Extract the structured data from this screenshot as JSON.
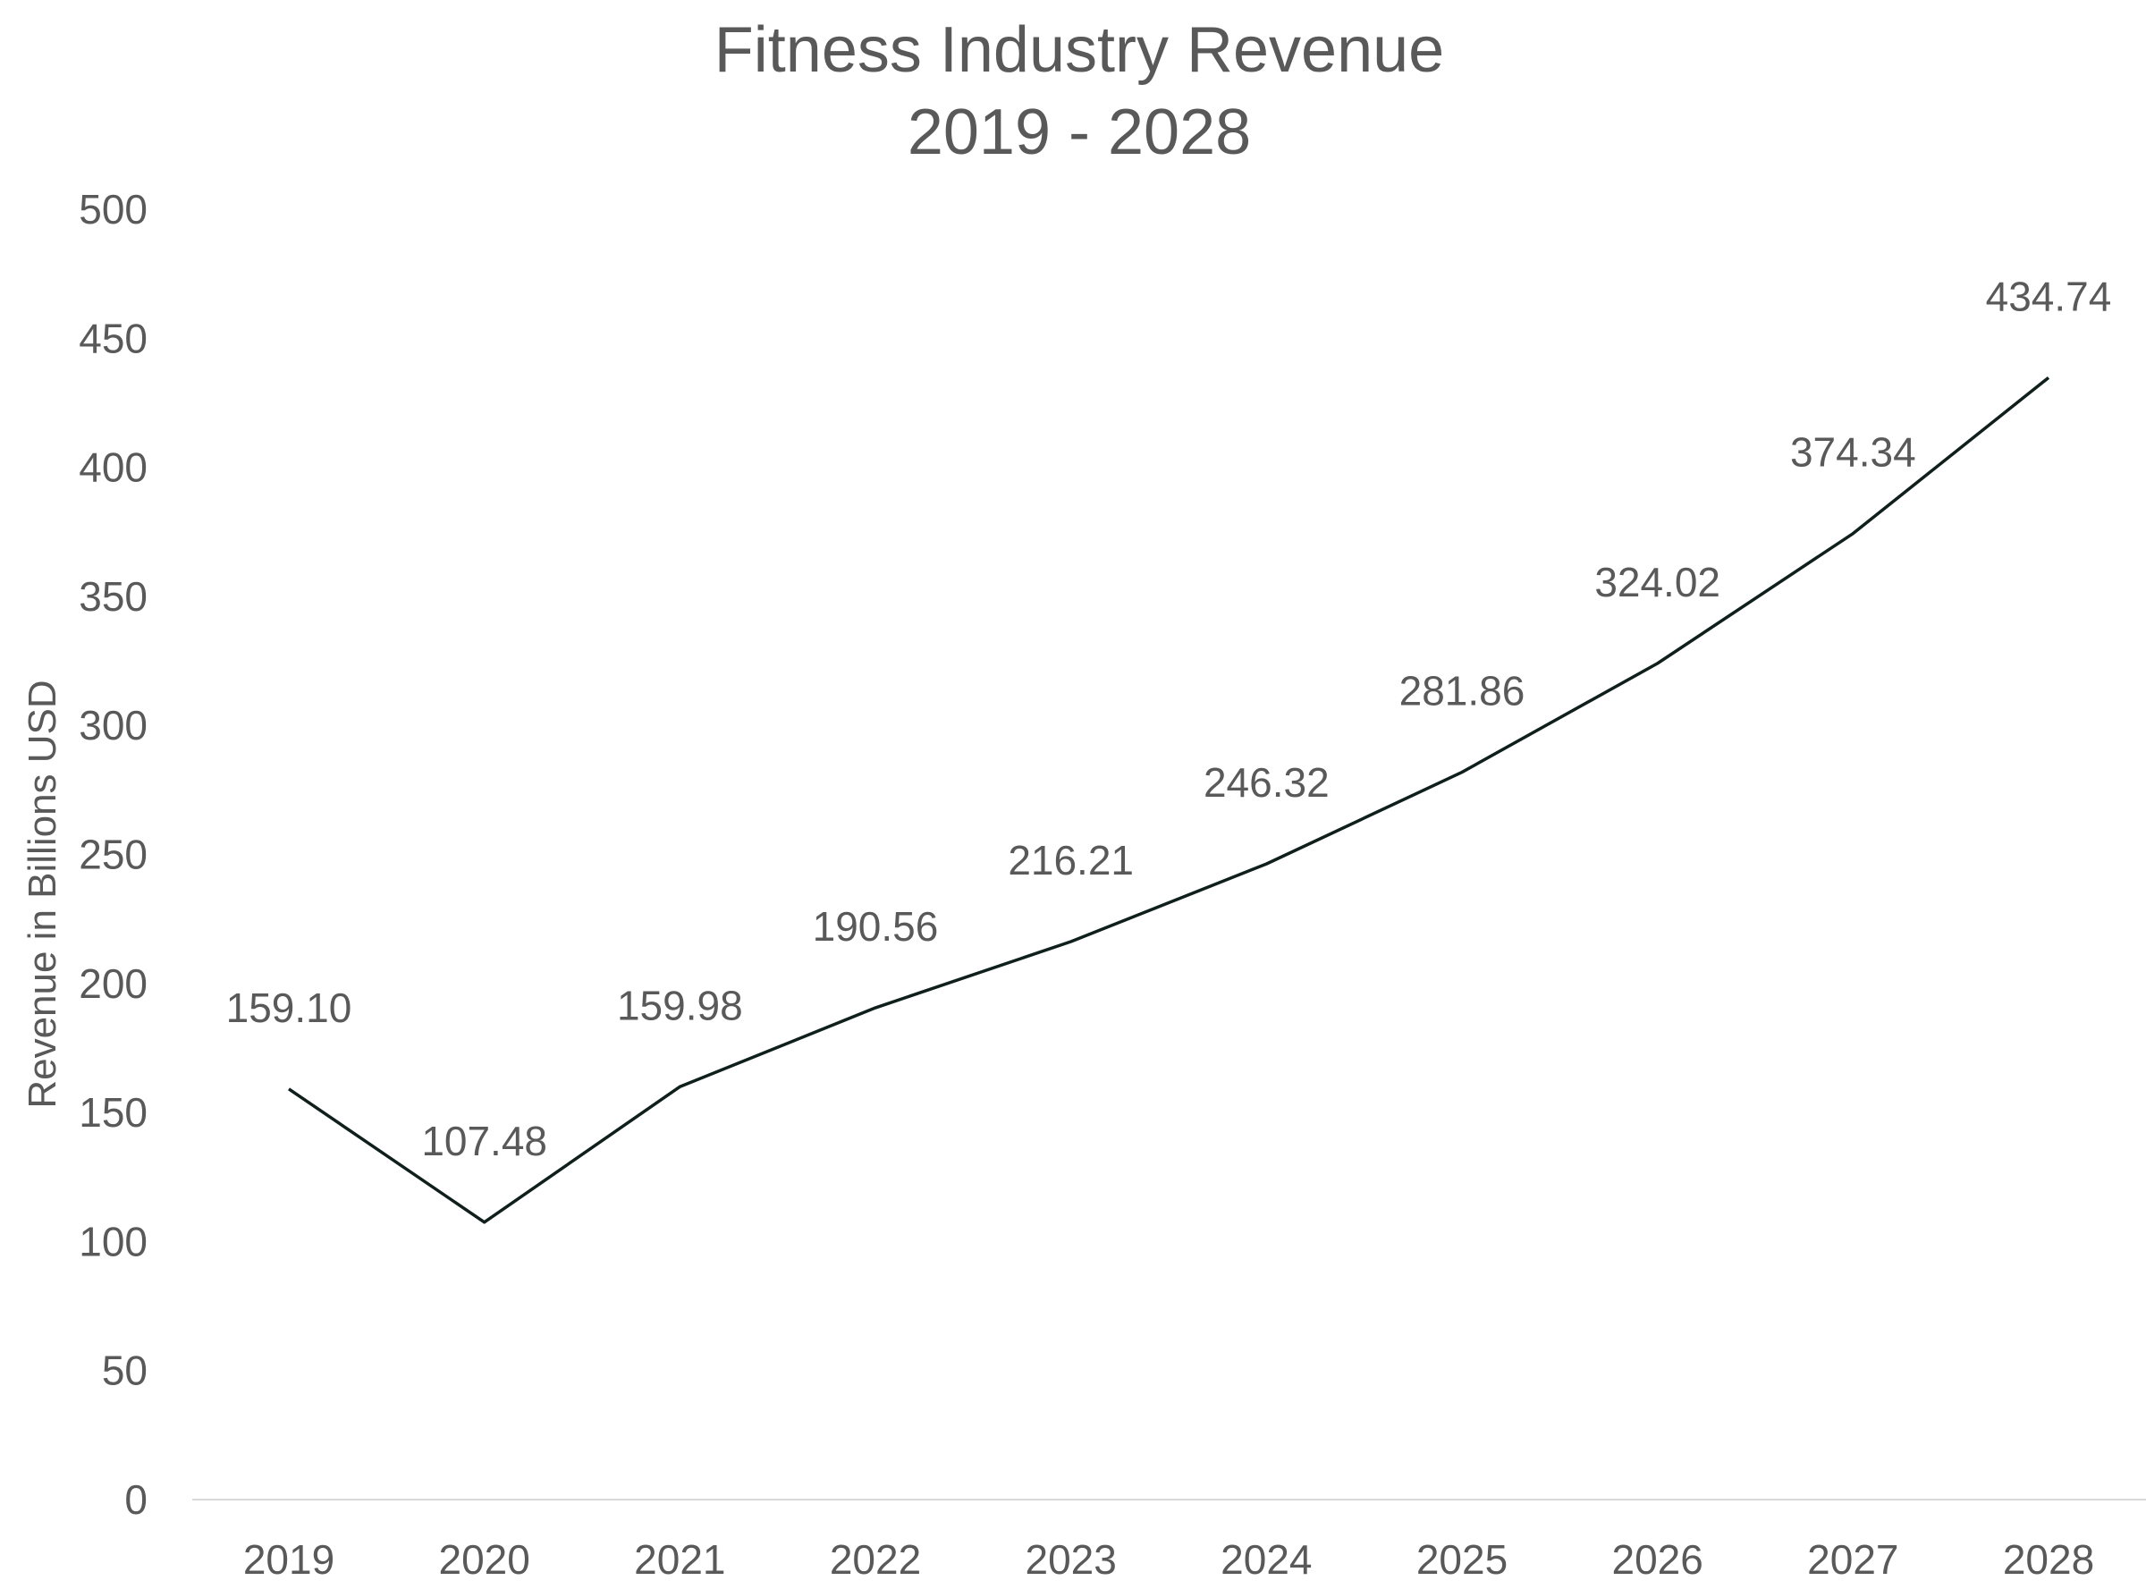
{
  "chart_data": {
    "type": "line",
    "title": "Fitness Industry Revenue",
    "subtitle": "2019 - 2028",
    "xlabel": "",
    "ylabel": "Revenue in Billions USD",
    "categories": [
      "2019",
      "2020",
      "2021",
      "2022",
      "2023",
      "2024",
      "2025",
      "2026",
      "2027",
      "2028"
    ],
    "values": [
      159.1,
      107.48,
      159.98,
      190.56,
      216.21,
      246.32,
      281.86,
      324.02,
      374.34,
      434.74
    ],
    "data_labels": [
      "159.10",
      "107.48",
      "159.98",
      "190.56",
      "216.21",
      "246.32",
      "281.86",
      "324.02",
      "374.34",
      "434.74"
    ],
    "ylim": [
      0,
      500
    ],
    "yticks": [
      "0",
      "50",
      "100",
      "150",
      "200",
      "250",
      "300",
      "350",
      "400",
      "450",
      "500"
    ],
    "grid": false,
    "legend": "none",
    "colors": {
      "line": "#0f1f1c",
      "text": "#595959",
      "axis": "#d9d9d9"
    }
  }
}
